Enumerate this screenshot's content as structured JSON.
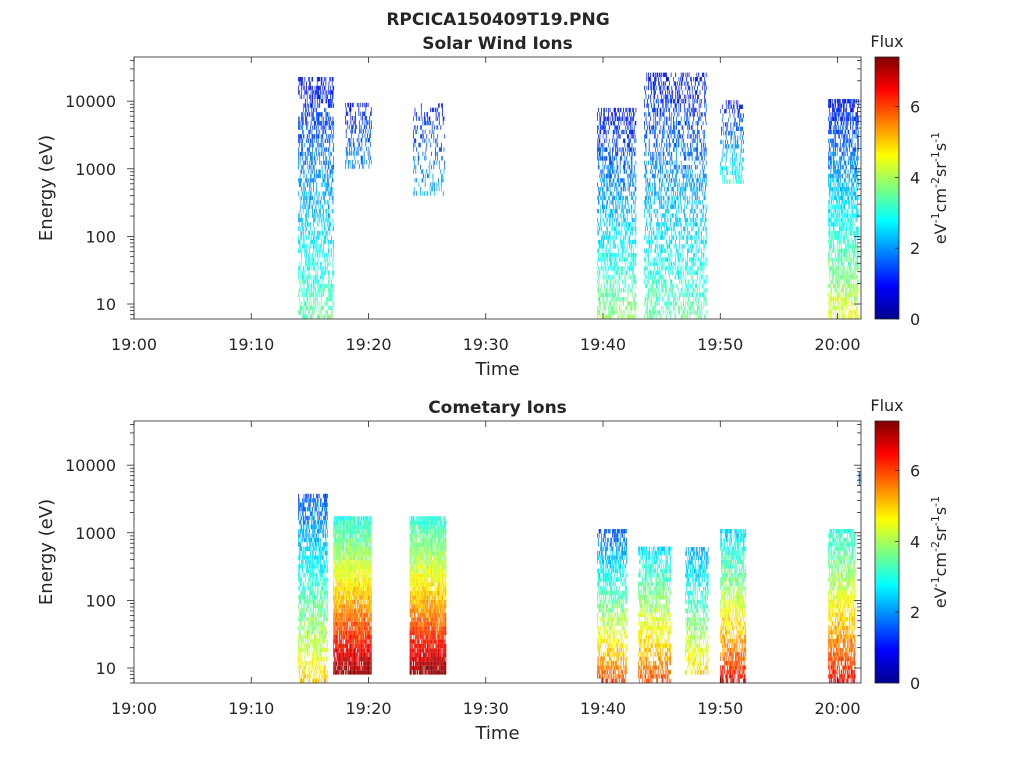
{
  "figure_title": "RPCICA150409T19.PNG",
  "chart_data": [
    {
      "type": "heatmap",
      "title": "Solar Wind Ions",
      "xlabel": "Time",
      "ylabel": "Energy (eV)",
      "x_range": [
        "19:00",
        "20:02"
      ],
      "x_ticks": [
        "19:00",
        "19:10",
        "19:20",
        "19:30",
        "19:40",
        "19:50",
        "20:00"
      ],
      "y_scale": "log",
      "y_range": [
        6,
        45000
      ],
      "y_ticks": [
        "10",
        "100",
        "1000",
        "10000"
      ],
      "colorbar": {
        "title": "Flux",
        "label": "eV-1cm-2sr-1s-1",
        "range": [
          0,
          7.4
        ],
        "ticks": [
          "0",
          "2",
          "4",
          "6"
        ],
        "colormap": "jet"
      },
      "bursts": [
        {
          "t0": 14.0,
          "t1": 17.0,
          "e_lo": 6,
          "e_hi": 20000,
          "flux_lo": 1.0,
          "flux_hi": 3.5,
          "density": 0.45
        },
        {
          "t0": 18.0,
          "t1": 20.2,
          "e_lo": 1000,
          "e_hi": 9000,
          "flux_lo": 1.0,
          "flux_hi": 2.0,
          "density": 0.3
        },
        {
          "t0": 23.8,
          "t1": 26.5,
          "e_lo": 400,
          "e_hi": 9000,
          "flux_lo": 1.0,
          "flux_hi": 2.2,
          "density": 0.22
        },
        {
          "t0": 39.5,
          "t1": 42.8,
          "e_lo": 6,
          "e_hi": 7000,
          "flux_lo": 1.0,
          "flux_hi": 3.8,
          "density": 0.45
        },
        {
          "t0": 43.5,
          "t1": 48.8,
          "e_lo": 6,
          "e_hi": 25000,
          "flux_lo": 1.0,
          "flux_hi": 3.5,
          "density": 0.4
        },
        {
          "t0": 50.0,
          "t1": 52.0,
          "e_lo": 600,
          "e_hi": 10000,
          "flux_lo": 1.0,
          "flux_hi": 3.0,
          "density": 0.35
        },
        {
          "t0": 59.2,
          "t1": 61.8,
          "e_lo": 6,
          "e_hi": 10000,
          "flux_lo": 1.0,
          "flux_hi": 4.5,
          "density": 0.6
        }
      ]
    },
    {
      "type": "heatmap",
      "title": "Cometary Ions",
      "xlabel": "Time",
      "ylabel": "Energy (eV)",
      "x_range": [
        "19:00",
        "20:02"
      ],
      "x_ticks": [
        "19:00",
        "19:10",
        "19:20",
        "19:30",
        "19:40",
        "19:50",
        "20:00"
      ],
      "y_scale": "log",
      "y_range": [
        6,
        45000
      ],
      "y_ticks": [
        "10",
        "100",
        "1000",
        "10000"
      ],
      "colorbar": {
        "title": "Flux",
        "label": "eV-1cm-2sr-1s-1",
        "range": [
          0,
          7.4
        ],
        "ticks": [
          "0",
          "2",
          "4",
          "6"
        ],
        "colormap": "jet"
      },
      "bursts": [
        {
          "t0": 14.0,
          "t1": 16.5,
          "e_lo": 6,
          "e_hi": 3500,
          "flux_lo": 1.5,
          "flux_hi": 5.0,
          "density": 0.6
        },
        {
          "t0": 17.0,
          "t1": 20.2,
          "e_lo": 8,
          "e_hi": 1600,
          "flux_lo": 3.0,
          "flux_hi": 7.3,
          "density": 0.9
        },
        {
          "t0": 23.5,
          "t1": 26.6,
          "e_lo": 8,
          "e_hi": 1600,
          "flux_lo": 3.0,
          "flux_hi": 7.3,
          "density": 0.9
        },
        {
          "t0": 39.5,
          "t1": 42.0,
          "e_lo": 6,
          "e_hi": 1100,
          "flux_lo": 1.5,
          "flux_hi": 6.0,
          "density": 0.6
        },
        {
          "t0": 43.0,
          "t1": 45.8,
          "e_lo": 6,
          "e_hi": 600,
          "flux_lo": 2.5,
          "flux_hi": 6.0,
          "density": 0.6
        },
        {
          "t0": 47.0,
          "t1": 49.0,
          "e_lo": 8,
          "e_hi": 600,
          "flux_lo": 2.0,
          "flux_hi": 5.0,
          "density": 0.55
        },
        {
          "t0": 50.0,
          "t1": 52.2,
          "e_lo": 6,
          "e_hi": 1000,
          "flux_lo": 2.5,
          "flux_hi": 6.5,
          "density": 0.65
        },
        {
          "t0": 59.2,
          "t1": 61.5,
          "e_lo": 6,
          "e_hi": 1000,
          "flux_lo": 3.0,
          "flux_hi": 6.5,
          "density": 0.7
        },
        {
          "t0": 61.8,
          "t1": 62.0,
          "e_lo": 5000,
          "e_hi": 7000,
          "flux_lo": 1.5,
          "flux_hi": 2.0,
          "density": 1.0
        }
      ]
    }
  ]
}
